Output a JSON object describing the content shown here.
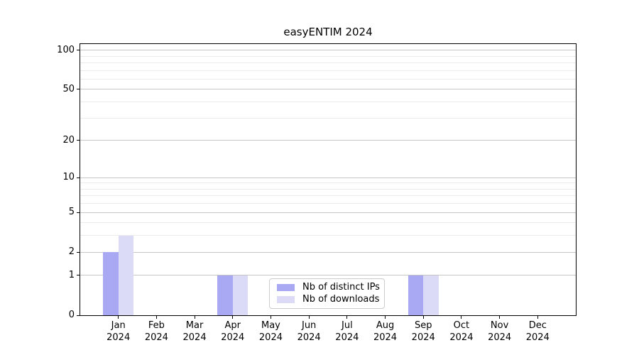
{
  "chart_data": {
    "type": "bar",
    "title": "easyENTIM 2024",
    "categories": [
      {
        "month": "Jan",
        "year": "2024"
      },
      {
        "month": "Feb",
        "year": "2024"
      },
      {
        "month": "Mar",
        "year": "2024"
      },
      {
        "month": "Apr",
        "year": "2024"
      },
      {
        "month": "May",
        "year": "2024"
      },
      {
        "month": "Jun",
        "year": "2024"
      },
      {
        "month": "Jul",
        "year": "2024"
      },
      {
        "month": "Aug",
        "year": "2024"
      },
      {
        "month": "Sep",
        "year": "2024"
      },
      {
        "month": "Oct",
        "year": "2024"
      },
      {
        "month": "Nov",
        "year": "2024"
      },
      {
        "month": "Dec",
        "year": "2024"
      }
    ],
    "series": [
      {
        "name": "Nb of distinct IPs",
        "color": "#a9a9f3",
        "values": [
          2,
          0,
          0,
          1,
          0,
          0,
          0,
          0,
          1,
          0,
          0,
          0
        ]
      },
      {
        "name": "Nb of downloads",
        "color": "#dbdbf8",
        "values": [
          3,
          0,
          0,
          1,
          0,
          0,
          0,
          0,
          1,
          0,
          0,
          0
        ]
      }
    ],
    "yscale": "log1p",
    "ylim": [
      0,
      114
    ],
    "yticks": [
      0,
      1,
      2,
      5,
      10,
      20,
      50,
      100
    ],
    "minor_gridlines": [
      3,
      4,
      6,
      7,
      8,
      9,
      30,
      40,
      60,
      70,
      80,
      90
    ],
    "grid": "horizontal",
    "legend_position": "bottom-center-inside",
    "xlabel": "",
    "ylabel": ""
  },
  "colors": {
    "background": "#ffffff",
    "spine": "#000000",
    "major_grid": "#c6c6c6",
    "minor_grid": "#ebebeb",
    "legend_border": "#cccccc",
    "text": "#000000"
  }
}
